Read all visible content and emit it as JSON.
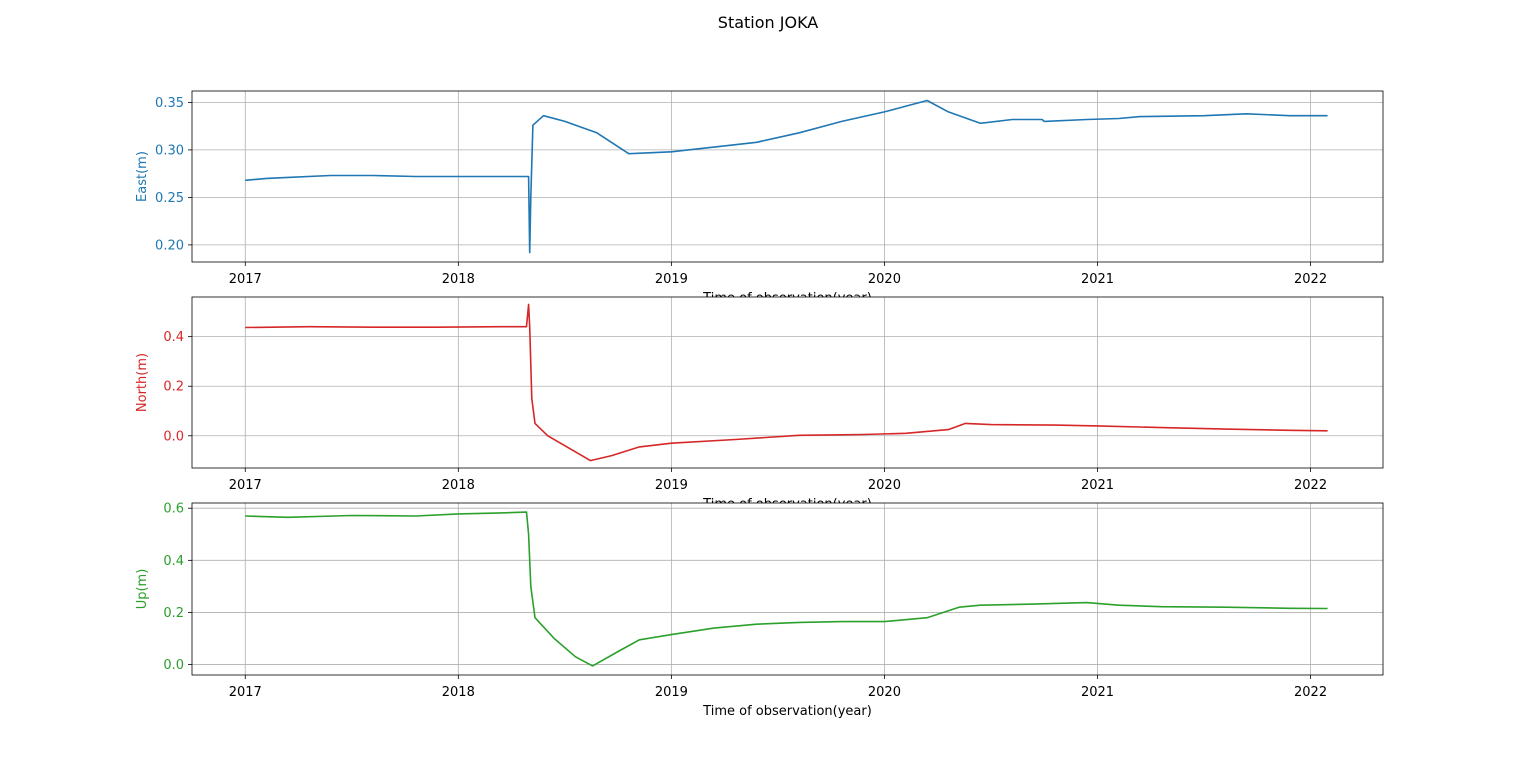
{
  "figure": {
    "title": "Station JOKA",
    "background": "#ffffff",
    "grid_color": "#b0b0b0"
  },
  "chart_data": [
    {
      "type": "line",
      "xlabel": "Time of observation(year)",
      "ylabel": "East(m)",
      "color": "#1f77b4",
      "xlim": [
        2016.75,
        2022.34
      ],
      "ylim": [
        0.182,
        0.362
      ],
      "x_ticks": [
        2017,
        2018,
        2019,
        2020,
        2021,
        2022
      ],
      "x_tick_labels": [
        "2017",
        "2018",
        "2019",
        "2020",
        "2021",
        "2022"
      ],
      "y_ticks": [
        0.2,
        0.25,
        0.3,
        0.35
      ],
      "y_tick_labels": [
        "0.20",
        "0.25",
        "0.30",
        "0.35"
      ],
      "grid": true,
      "series": [
        {
          "x": [
            2017.0,
            2017.1,
            2017.2,
            2017.4,
            2017.6,
            2017.8,
            2018.0,
            2018.2,
            2018.33,
            2018.335,
            2018.34,
            2018.35,
            2018.4,
            2018.5,
            2018.65,
            2018.8,
            2019.0,
            2019.2,
            2019.4,
            2019.6,
            2019.8,
            2020.0,
            2020.2,
            2020.3,
            2020.45,
            2020.6,
            2020.74,
            2020.75,
            2020.95,
            2021.1,
            2021.2,
            2021.5,
            2021.7,
            2021.9,
            2022.08
          ],
          "y": [
            0.268,
            0.27,
            0.271,
            0.273,
            0.273,
            0.272,
            0.272,
            0.272,
            0.272,
            0.192,
            0.25,
            0.326,
            0.336,
            0.33,
            0.318,
            0.296,
            0.298,
            0.303,
            0.308,
            0.318,
            0.33,
            0.34,
            0.352,
            0.34,
            0.328,
            0.332,
            0.332,
            0.33,
            0.332,
            0.333,
            0.335,
            0.336,
            0.338,
            0.336,
            0.336
          ]
        }
      ]
    },
    {
      "type": "line",
      "xlabel": "Time of observation(year)",
      "ylabel": "North(m)",
      "color": "#d62728",
      "xlim": [
        2016.75,
        2022.34
      ],
      "ylim": [
        -0.13,
        0.56
      ],
      "x_ticks": [
        2017,
        2018,
        2019,
        2020,
        2021,
        2022
      ],
      "x_tick_labels": [
        "2017",
        "2018",
        "2019",
        "2020",
        "2021",
        "2022"
      ],
      "y_ticks": [
        0.0,
        0.2,
        0.4
      ],
      "y_tick_labels": [
        "0.0",
        "0.2",
        "0.4"
      ],
      "grid": true,
      "series": [
        {
          "x": [
            2017.0,
            2017.3,
            2017.6,
            2017.9,
            2018.2,
            2018.32,
            2018.33,
            2018.335,
            2018.345,
            2018.36,
            2018.42,
            2018.52,
            2018.62,
            2018.72,
            2018.85,
            2019.0,
            2019.3,
            2019.6,
            2019.9,
            2020.1,
            2020.3,
            2020.38,
            2020.5,
            2020.8,
            2021.0,
            2021.3,
            2021.6,
            2021.9,
            2022.08
          ],
          "y": [
            0.437,
            0.44,
            0.438,
            0.438,
            0.44,
            0.44,
            0.53,
            0.44,
            0.15,
            0.05,
            0.0,
            -0.05,
            -0.1,
            -0.08,
            -0.045,
            -0.03,
            -0.015,
            0.002,
            0.005,
            0.01,
            0.025,
            0.05,
            0.045,
            0.043,
            0.04,
            0.033,
            0.027,
            0.022,
            0.02
          ]
        }
      ]
    },
    {
      "type": "line",
      "xlabel": "Time of observation(year)",
      "ylabel": "Up(m)",
      "color": "#2ca02c",
      "xlim": [
        2016.75,
        2022.34
      ],
      "ylim": [
        -0.04,
        0.62
      ],
      "x_ticks": [
        2017,
        2018,
        2019,
        2020,
        2021,
        2022
      ],
      "x_tick_labels": [
        "2017",
        "2018",
        "2019",
        "2020",
        "2021",
        "2022"
      ],
      "y_ticks": [
        0.0,
        0.2,
        0.4,
        0.6
      ],
      "y_tick_labels": [
        "0.0",
        "0.2",
        "0.4",
        "0.6"
      ],
      "grid": true,
      "series": [
        {
          "x": [
            2017.0,
            2017.2,
            2017.5,
            2017.8,
            2018.0,
            2018.2,
            2018.32,
            2018.33,
            2018.34,
            2018.36,
            2018.45,
            2018.55,
            2018.63,
            2018.75,
            2018.85,
            2019.0,
            2019.2,
            2019.4,
            2019.6,
            2019.8,
            2020.0,
            2020.2,
            2020.35,
            2020.45,
            2020.7,
            2020.95,
            2021.1,
            2021.3,
            2021.6,
            2021.9,
            2022.08
          ],
          "y": [
            0.57,
            0.565,
            0.572,
            0.57,
            0.578,
            0.582,
            0.585,
            0.5,
            0.3,
            0.18,
            0.1,
            0.03,
            -0.005,
            0.05,
            0.095,
            0.115,
            0.14,
            0.155,
            0.162,
            0.165,
            0.165,
            0.18,
            0.22,
            0.228,
            0.232,
            0.238,
            0.228,
            0.222,
            0.22,
            0.216,
            0.215
          ]
        }
      ]
    }
  ]
}
